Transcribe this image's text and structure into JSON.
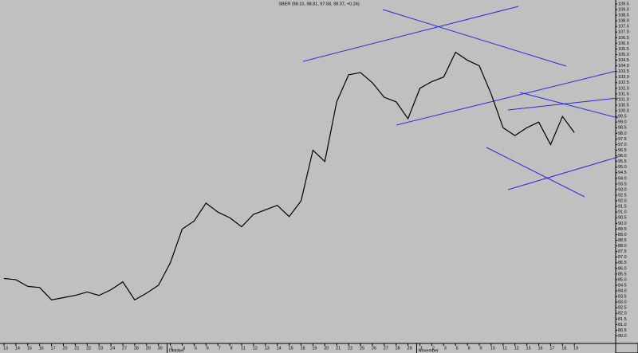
{
  "chart_data": {
    "type": "line",
    "title": "SBER (98.10, 98.81, 97.68, 98.07, +0.24)",
    "categories": [
      "13",
      "14",
      "15",
      "16",
      "17",
      "20",
      "21",
      "22",
      "23",
      "24",
      "27",
      "28",
      "29",
      "30",
      "1",
      "4",
      "5",
      "6",
      "7",
      "8",
      "11",
      "12",
      "13",
      "14",
      "15",
      "18",
      "19",
      "20",
      "21",
      "22",
      "25",
      "26",
      "27",
      "28",
      "29",
      "1",
      "2",
      "3",
      "5",
      "8",
      "9",
      "10",
      "11",
      "12",
      "15",
      "16",
      "17",
      "18",
      "19"
    ],
    "months": [
      "Oktober",
      "November"
    ],
    "series": [
      {
        "color": "#000000",
        "values": [
          85.1,
          85.0,
          84.4,
          84.3,
          83.2,
          83.4,
          83.6,
          83.9,
          83.6,
          84.1,
          84.8,
          83.2,
          83.8,
          84.5,
          86.5,
          89.5,
          90.2,
          91.8,
          91.0,
          90.5,
          89.7,
          90.8,
          91.2,
          91.6,
          90.6,
          92.0,
          96.5,
          95.5,
          100.8,
          103.2,
          103.4,
          102.5,
          101.2,
          100.8,
          99.3,
          102.0,
          102.6,
          103.0,
          105.2,
          104.5,
          104.0,
          101.5,
          98.5,
          97.8,
          98.5,
          99.0,
          97.0,
          99.5,
          98.07
        ]
      }
    ],
    "ylim": [
      79.4,
      109.85
    ],
    "yticks": [
      {
        "value": 80,
        "label": "80.0"
      },
      80.5,
      {
        "value": 81,
        "label": "81.0"
      },
      81.5,
      {
        "value": 82,
        "label": "82.0"
      },
      82.5,
      {
        "value": 83,
        "label": "83.0"
      },
      83.5,
      {
        "value": 84,
        "label": "84.0"
      },
      84.5,
      {
        "value": 85,
        "label": "85.0"
      },
      85.5,
      {
        "value": 86,
        "label": "86.0"
      },
      86.5,
      {
        "value": 87,
        "label": "87.0"
      },
      87.5,
      {
        "value": 88,
        "label": "88.0"
      },
      88.5,
      {
        "value": 89,
        "label": "89.0"
      },
      89.5,
      {
        "value": 90,
        "label": "90.0"
      },
      90.5,
      {
        "value": 91,
        "label": "91.0"
      },
      91.5,
      {
        "value": 92,
        "label": "92.0"
      },
      92.5,
      {
        "value": 93,
        "label": "93.0"
      },
      93.5,
      {
        "value": 94,
        "label": "94.0"
      },
      94.5,
      {
        "value": 95,
        "label": "95.0"
      },
      95.5,
      {
        "value": 96,
        "label": "96.0"
      },
      96.5,
      {
        "value": 97,
        "label": "97.0"
      },
      97.5,
      {
        "value": 98,
        "label": "98.0"
      },
      98.5,
      {
        "value": 99,
        "label": "99.0"
      },
      99.5,
      {
        "value": 100,
        "label": "100.0"
      },
      100.5,
      {
        "value": 101,
        "label": "101.0"
      },
      101.5,
      {
        "value": 102,
        "label": "102.0"
      },
      102.5,
      {
        "value": 103,
        "label": "103.0"
      },
      103.5,
      {
        "value": 104,
        "label": "104.0"
      },
      104.5,
      {
        "value": 105,
        "label": "105.0"
      },
      105.5,
      {
        "value": 106,
        "label": "106.0"
      },
      106.5,
      {
        "value": 107,
        "label": "107.0"
      },
      107.5,
      {
        "value": 108,
        "label": "108.0"
      },
      108.5,
      {
        "value": 109,
        "label": "109.0"
      },
      109.5
    ],
    "grid": false
  }
}
